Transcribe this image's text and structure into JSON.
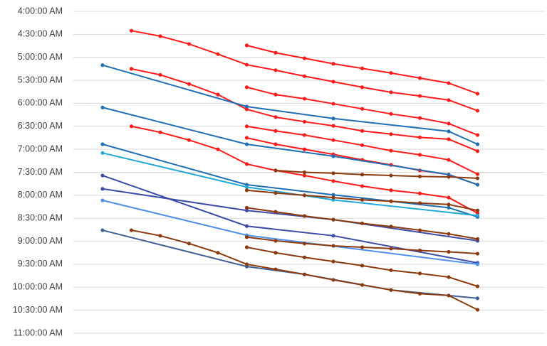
{
  "chart_data": {
    "type": "line",
    "y_reversed": true,
    "grid": true,
    "span_gaps": true,
    "categories": [
      null,
      null,
      null,
      null,
      null,
      null,
      null,
      null,
      null,
      null,
      null,
      null,
      null,
      null
    ],
    "ylim": [
      4,
      11
    ],
    "yticks": [
      {
        "value": 4,
        "label": "4:00:00 AM"
      },
      {
        "value": 4.5,
        "label": "4:30:00 AM"
      },
      {
        "value": 5,
        "label": "5:00:00 AM"
      },
      {
        "value": 5.5,
        "label": "5:30:00 AM"
      },
      {
        "value": 6,
        "label": "6:00:00 AM"
      },
      {
        "value": 6.5,
        "label": "6:30:00 AM"
      },
      {
        "value": 7,
        "label": "7:00:00 AM"
      },
      {
        "value": 7.5,
        "label": "7:30:00 AM"
      },
      {
        "value": 8,
        "label": "8:00:00 AM"
      },
      {
        "value": 8.5,
        "label": "8:30:00 AM"
      },
      {
        "value": 9,
        "label": "9:00:00 AM"
      },
      {
        "value": 9.5,
        "label": "9:30:00 AM"
      },
      {
        "value": 10,
        "label": "10:00:00 AM"
      },
      {
        "value": 10.5,
        "label": "10:30:00 AM"
      },
      {
        "value": 11,
        "label": "11:00:00 AM"
      }
    ],
    "series": [
      {
        "color": "#ff1a1a",
        "values": [
          null,
          null,
          null,
          null,
          null,
          4.74,
          4.9,
          5.02,
          5.14,
          5.24,
          5.34,
          5.45,
          5.56,
          5.79
        ]
      },
      {
        "color": "#ff1a1a",
        "values": [
          null,
          4.42,
          4.54,
          4.71,
          4.93,
          5.16,
          5.28,
          5.41,
          5.53,
          5.65,
          5.76,
          5.84,
          5.93,
          6.16
        ]
      },
      {
        "color": "#ff1a1a",
        "values": [
          null,
          null,
          null,
          null,
          null,
          5.65,
          5.81,
          5.9,
          6.01,
          6.12,
          6.23,
          6.32,
          6.44,
          6.69
        ]
      },
      {
        "color": "#ff1a1a",
        "values": [
          null,
          5.25,
          5.38,
          5.58,
          5.81,
          6.13,
          6.3,
          6.4,
          6.49,
          6.6,
          6.67,
          6.74,
          6.78,
          7.04
        ]
      },
      {
        "color": "#ff1a1a",
        "values": [
          null,
          null,
          null,
          null,
          null,
          6.5,
          6.6,
          6.69,
          6.8,
          6.91,
          7.03,
          7.12,
          7.23,
          7.54
        ]
      },
      {
        "color": "#ff1a1a",
        "values": [
          null,
          null,
          null,
          null,
          null,
          6.75,
          6.89,
          7.0,
          7.11,
          7.23,
          7.34,
          7.46,
          7.55,
          7.77
        ]
      },
      {
        "color": "#ff1a1a",
        "values": [
          null,
          6.5,
          6.63,
          6.8,
          7.0,
          7.32,
          7.46,
          7.57,
          7.69,
          7.8,
          7.89,
          7.96,
          8.05,
          8.39
        ]
      },
      {
        "color": "#1f6fb4",
        "values": [
          5.17,
          null,
          null,
          null,
          null,
          6.07,
          null,
          null,
          6.33,
          null,
          null,
          null,
          6.61,
          6.89
        ]
      },
      {
        "color": "#1f6fb4",
        "values": [
          6.09,
          null,
          null,
          null,
          null,
          6.89,
          null,
          null,
          7.15,
          null,
          null,
          null,
          7.55,
          7.77
        ]
      },
      {
        "color": "#1f6fb4",
        "values": [
          6.89,
          null,
          null,
          null,
          null,
          7.77,
          null,
          null,
          7.99,
          null,
          null,
          null,
          8.27,
          8.47
        ]
      },
      {
        "color": "#22a8d6",
        "values": [
          7.08,
          null,
          null,
          null,
          null,
          7.82,
          null,
          null,
          8.1,
          null,
          null,
          null,
          null,
          8.44
        ]
      },
      {
        "color": "#3b4ba6",
        "values": [
          7.57,
          null,
          null,
          null,
          null,
          8.67,
          null,
          null,
          8.88,
          null,
          null,
          null,
          null,
          9.47
        ]
      },
      {
        "color": "#3b4ba6",
        "values": [
          7.86,
          null,
          null,
          null,
          null,
          8.33,
          null,
          null,
          8.53,
          null,
          null,
          null,
          null,
          8.99
        ]
      },
      {
        "color": "#4f8fe6",
        "values": [
          8.11,
          null,
          null,
          null,
          null,
          8.87,
          null,
          null,
          null,
          null,
          null,
          null,
          null,
          9.5
        ]
      },
      {
        "color": "#3f5f95",
        "values": [
          8.76,
          null,
          null,
          null,
          null,
          9.55,
          null,
          9.72,
          null,
          null,
          10.06,
          null,
          null,
          10.24
        ]
      },
      {
        "color": "#8b3a0f",
        "values": [
          null,
          null,
          null,
          null,
          null,
          null,
          7.46,
          7.5,
          7.52,
          7.55,
          7.57,
          7.59,
          7.6,
          7.63
        ]
      },
      {
        "color": "#8b3a0f",
        "values": [
          null,
          null,
          null,
          null,
          null,
          7.89,
          7.95,
          8.0,
          8.05,
          8.1,
          8.13,
          8.17,
          8.2,
          8.33
        ]
      },
      {
        "color": "#8b3a0f",
        "values": [
          null,
          null,
          null,
          null,
          null,
          8.27,
          8.36,
          8.45,
          8.53,
          8.61,
          8.68,
          8.76,
          8.84,
          8.95
        ]
      },
      {
        "color": "#8b3a0f",
        "values": [
          null,
          null,
          null,
          null,
          null,
          8.91,
          8.99,
          9.05,
          9.1,
          9.13,
          9.16,
          9.2,
          9.23,
          9.27
        ]
      },
      {
        "color": "#8b3a0f",
        "values": [
          null,
          8.76,
          8.88,
          9.05,
          9.25,
          9.5,
          9.61,
          9.72,
          9.84,
          9.95,
          10.06,
          10.14,
          10.18,
          10.49
        ]
      },
      {
        "color": "#8b3a0f",
        "values": [
          null,
          null,
          null,
          null,
          null,
          9.13,
          9.25,
          9.35,
          9.44,
          9.53,
          9.63,
          9.7,
          9.78,
          9.98
        ]
      }
    ]
  }
}
